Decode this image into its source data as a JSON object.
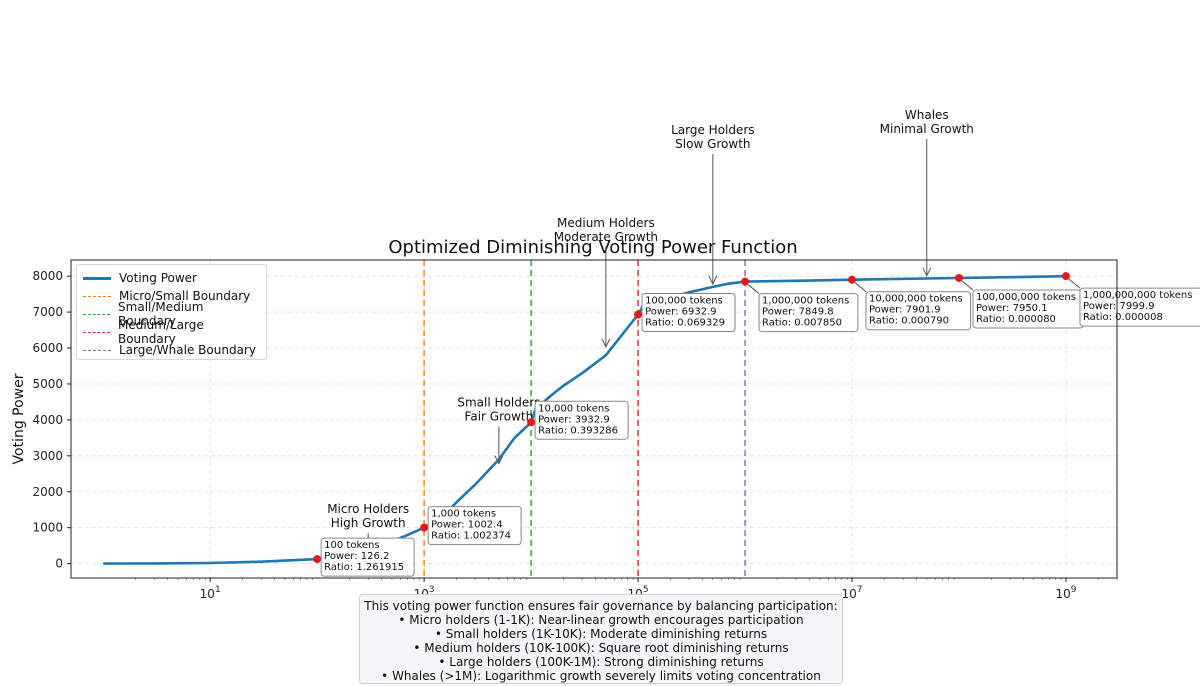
{
  "chart_data": {
    "type": "line",
    "title": "Optimized Diminishing Voting Power Function",
    "xlabel": "",
    "ylabel": "Voting Power",
    "xscale": "log",
    "xlim": [
      0.5,
      3000000000
    ],
    "ylim": [
      -400,
      8450
    ],
    "grid": true,
    "legend_position": "top-left",
    "yticks": [
      0,
      1000,
      2000,
      3000,
      4000,
      5000,
      6000,
      7000,
      8000
    ],
    "xticks": [
      {
        "value": 10,
        "base": "10",
        "exp": "1"
      },
      {
        "value": 1000,
        "base": "10",
        "exp": "3"
      },
      {
        "value": 100000,
        "base": "10",
        "exp": "5"
      },
      {
        "value": 10000000,
        "base": "10",
        "exp": "7"
      },
      {
        "value": 1000000000,
        "base": "10",
        "exp": "9"
      }
    ],
    "series": [
      {
        "name": "Voting Power",
        "color": "#1f77b4",
        "points": [
          [
            1,
            0
          ],
          [
            3,
            5
          ],
          [
            10,
            18
          ],
          [
            30,
            55
          ],
          [
            100,
            126.2
          ],
          [
            200,
            250
          ],
          [
            400,
            500
          ],
          [
            700,
            800
          ],
          [
            1000,
            1002.4
          ],
          [
            1500,
            1300
          ],
          [
            2000,
            1700
          ],
          [
            3000,
            2200
          ],
          [
            5000,
            2900
          ],
          [
            7000,
            3500
          ],
          [
            10000,
            3932.9
          ],
          [
            11000,
            4300
          ],
          [
            15000,
            4650
          ],
          [
            20000,
            4950
          ],
          [
            30000,
            5300
          ],
          [
            50000,
            5800
          ],
          [
            70000,
            6350
          ],
          [
            100000,
            6932.9
          ],
          [
            110000,
            7150
          ],
          [
            150000,
            7300
          ],
          [
            200000,
            7400
          ],
          [
            300000,
            7550
          ],
          [
            500000,
            7700
          ],
          [
            700000,
            7790
          ],
          [
            1000000,
            7849.8
          ],
          [
            3000000,
            7870
          ],
          [
            10000000,
            7901.9
          ],
          [
            100000000,
            7950.1
          ],
          [
            1000000000,
            7999.9
          ]
        ]
      }
    ],
    "boundaries": [
      {
        "name": "Micro/Small Boundary",
        "x": 1000,
        "color": "#ff7f0e"
      },
      {
        "name": "Small/Medium Boundary",
        "x": 10000,
        "color": "#2ca02c"
      },
      {
        "name": "Medium/Large Boundary",
        "x": 100000,
        "color": "#d62728"
      },
      {
        "name": "Large/Whale Boundary",
        "x": 1000000,
        "color": "#9467bd"
      }
    ],
    "markers": [
      {
        "x": 100,
        "y": 126.2,
        "lines": [
          "100 tokens",
          "Power: 126.2",
          "Ratio: 1.261915"
        ]
      },
      {
        "x": 1000,
        "y": 1002.4,
        "lines": [
          "1,000 tokens",
          "Power: 1002.4",
          "Ratio: 1.002374"
        ]
      },
      {
        "x": 10000,
        "y": 3932.9,
        "lines": [
          "10,000 tokens",
          "Power: 3932.9",
          "Ratio: 0.393286"
        ]
      },
      {
        "x": 100000,
        "y": 6932.9,
        "lines": [
          "100,000 tokens",
          "Power: 6932.9",
          "Ratio: 0.069329"
        ]
      },
      {
        "x": 1000000,
        "y": 7849.8,
        "lines": [
          "1,000,000 tokens",
          "Power: 7849.8",
          "Ratio: 0.007850"
        ]
      },
      {
        "x": 10000000,
        "y": 7901.9,
        "lines": [
          "10,000,000 tokens",
          "Power: 7901.9",
          "Ratio: 0.000790"
        ]
      },
      {
        "x": 100000000,
        "y": 7950.1,
        "lines": [
          "100,000,000 tokens",
          "Power: 7950.1",
          "Ratio: 0.000080"
        ]
      },
      {
        "x": 1000000000,
        "y": 7999.9,
        "lines": [
          "1,000,000,000 tokens",
          "Power: 7999.9",
          "Ratio: 0.000008"
        ]
      }
    ],
    "annotations": [
      {
        "lines": [
          "Micro Holders",
          "High Growth"
        ],
        "target": [
          300,
          350
        ]
      },
      {
        "lines": [
          "Small Holders",
          "Fair Growth"
        ],
        "target": [
          5000,
          2700
        ]
      },
      {
        "lines": [
          "Medium Holders",
          "Moderate Growth"
        ],
        "target": [
          50000,
          5950
        ]
      },
      {
        "lines": [
          "Large Holders",
          "Slow Growth"
        ],
        "target": [
          500000,
          7700
        ]
      },
      {
        "lines": [
          "Whales",
          "Minimal Growth"
        ],
        "target": [
          50000000,
          7930
        ]
      }
    ]
  },
  "footer": {
    "lines": [
      "This voting power function ensures fair governance by balancing participation:",
      "• Micro holders (1-1K): Near-linear growth encourages participation",
      "• Small holders (1K-10K): Moderate diminishing returns",
      "• Medium holders (10K-100K): Square root diminishing returns",
      "• Large holders (100K-1M): Strong diminishing returns",
      "• Whales (>1M): Logarithmic growth severely limits voting concentration"
    ]
  }
}
